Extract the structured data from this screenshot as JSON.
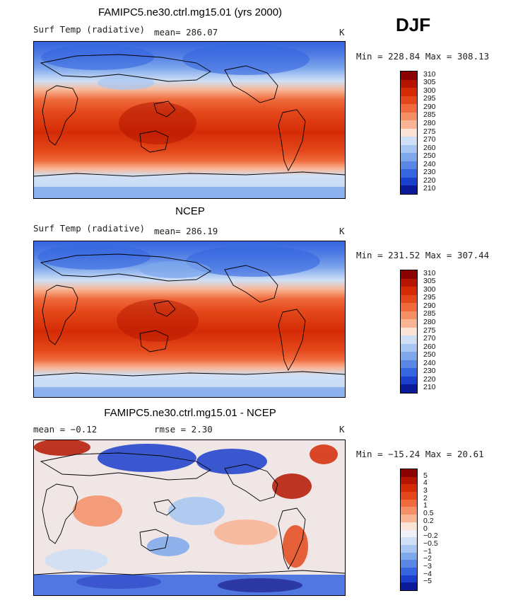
{
  "header": {
    "season": "DJF"
  },
  "panels": [
    {
      "title": "FAMIPC5.ne30.ctrl.mg15.01 (yrs 2000)",
      "left_label": "Surf Temp (radiative)",
      "stat_label": "mean= 286.07",
      "unit": "K",
      "minmax": "Min = 228.84 Max = 308.13"
    },
    {
      "title": "NCEP",
      "left_label": "Surf Temp (radiative)",
      "stat_label": "mean= 286.19",
      "unit": "K",
      "minmax": "Min = 231.52 Max = 307.44"
    },
    {
      "title": "FAMIPC5.ne30.ctrl.mg15.01 - NCEP",
      "left_label": "mean =  −0.12",
      "stat_label": "rmse =   2.30",
      "unit": "K",
      "minmax": "Min = −15.24 Max =  20.61"
    }
  ],
  "chart_data": [
    {
      "type": "heatmap",
      "title": "FAMIPC5.ne30.ctrl.mg15.01 (yrs 2000)",
      "variable": "Surf Temp (radiative)",
      "units": "K",
      "mean": 286.07,
      "min": 228.84,
      "max": 308.13,
      "colorbar_levels": [
        "310",
        "305",
        "300",
        "295",
        "290",
        "285",
        "280",
        "275",
        "270",
        "260",
        "250",
        "240",
        "230",
        "220",
        "210"
      ],
      "colorbar_colors": [
        "#8b0000",
        "#b51500",
        "#d42b06",
        "#e4481a",
        "#ef6a3c",
        "#f58f66",
        "#f9b493",
        "#fbe3d6",
        "#cfe0f6",
        "#a7c6f1",
        "#7ea7ec",
        "#5a86e6",
        "#3565df",
        "#1b3fcd",
        "#0a1a99"
      ]
    },
    {
      "type": "heatmap",
      "title": "NCEP",
      "variable": "Surf Temp (radiative)",
      "units": "K",
      "mean": 286.19,
      "min": 231.52,
      "max": 307.44,
      "colorbar_levels": [
        "310",
        "305",
        "300",
        "295",
        "290",
        "285",
        "280",
        "275",
        "270",
        "260",
        "250",
        "240",
        "230",
        "220",
        "210"
      ],
      "colorbar_colors": [
        "#8b0000",
        "#b51500",
        "#d42b06",
        "#e4481a",
        "#ef6a3c",
        "#f58f66",
        "#f9b493",
        "#fbe3d6",
        "#cfe0f6",
        "#a7c6f1",
        "#7ea7ec",
        "#5a86e6",
        "#3565df",
        "#1b3fcd",
        "#0a1a99"
      ]
    },
    {
      "type": "heatmap",
      "title": "FAMIPC5.ne30.ctrl.mg15.01 - NCEP",
      "units": "K",
      "mean": -0.12,
      "rmse": 2.3,
      "min": -15.24,
      "max": 20.61,
      "colorbar_levels": [
        "5",
        "4",
        "3",
        "2",
        "1",
        "0.5",
        "0.2",
        "0",
        "−0.2",
        "−0.5",
        "−1",
        "−2",
        "−3",
        "−4",
        "−5"
      ],
      "colorbar_colors": [
        "#8b0000",
        "#b51500",
        "#d42b06",
        "#e4481a",
        "#ef6a3c",
        "#f58f66",
        "#f9b493",
        "#fbe3d6",
        "#f0f0f8",
        "#cfe0f6",
        "#a7c6f1",
        "#7ea7ec",
        "#5a86e6",
        "#3565df",
        "#1b3fcd",
        "#0a1a99"
      ]
    }
  ]
}
